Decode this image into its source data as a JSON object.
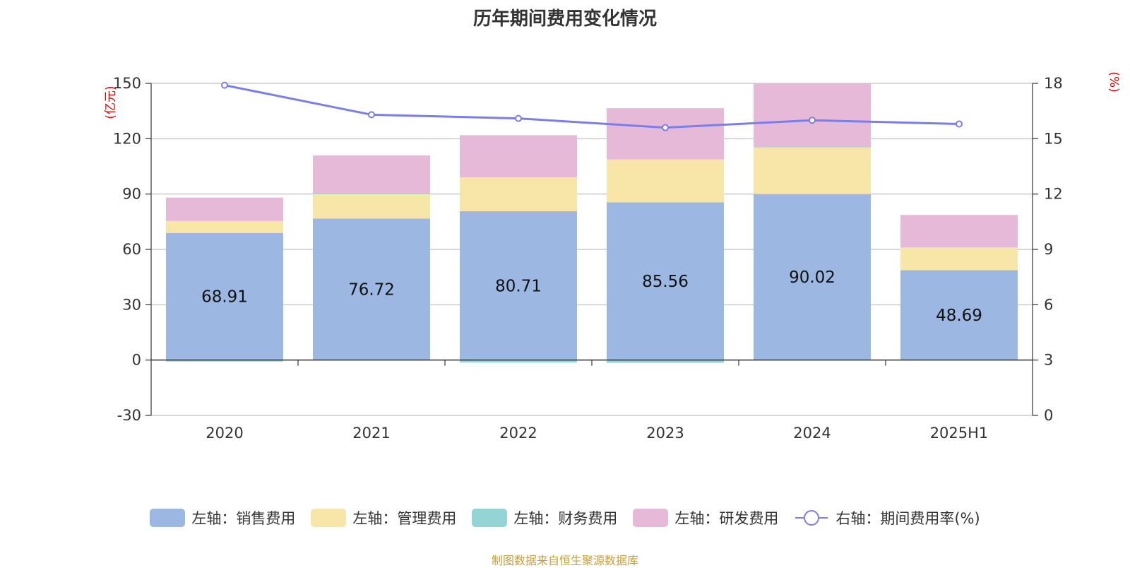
{
  "chart_data": {
    "type": "bar",
    "stacked": true,
    "title": "历年期间费用变化情况",
    "categories": [
      "2020",
      "2021",
      "2022",
      "2023",
      "2024",
      "2025H1"
    ],
    "left_axis": {
      "unit_label": "(亿元)",
      "ylim": [
        -30,
        150
      ],
      "ticks": [
        150,
        120,
        90,
        60,
        30,
        0,
        -30
      ]
    },
    "right_axis": {
      "unit_label": "(%)",
      "ylim": [
        0,
        18
      ],
      "ticks": [
        18,
        15,
        12,
        9,
        6,
        3,
        0
      ]
    },
    "series": [
      {
        "name": "左轴：销售费用",
        "color": "#9bb7e2",
        "axis": "left",
        "values": [
          68.91,
          76.72,
          80.71,
          85.56,
          90.02,
          48.69
        ],
        "show_labels": true
      },
      {
        "name": "左轴：管理费用",
        "color": "#f8e5a8",
        "axis": "left",
        "values": [
          6.5,
          13.3,
          18.3,
          23.2,
          25.3,
          12.3
        ]
      },
      {
        "name": "左轴：财务费用",
        "color": "#95d4d4",
        "axis": "left",
        "values": [
          -0.8,
          0.6,
          -1.3,
          -1.5,
          0.2,
          0.1
        ]
      },
      {
        "name": "左轴：研发费用",
        "color": "#e7b9d9",
        "axis": "left",
        "values": [
          12.7,
          20.3,
          22.9,
          27.8,
          34.5,
          17.6
        ]
      },
      {
        "name": "右轴：期间费用率(%)",
        "color": "#7a7ee8",
        "axis": "right",
        "type": "line",
        "values": [
          17.9,
          16.3,
          16.1,
          15.6,
          16.0,
          15.8
        ]
      }
    ],
    "grid": true,
    "legend_position": "bottom"
  },
  "footer": {
    "source": "制图数据来自恒生聚源数据库"
  }
}
